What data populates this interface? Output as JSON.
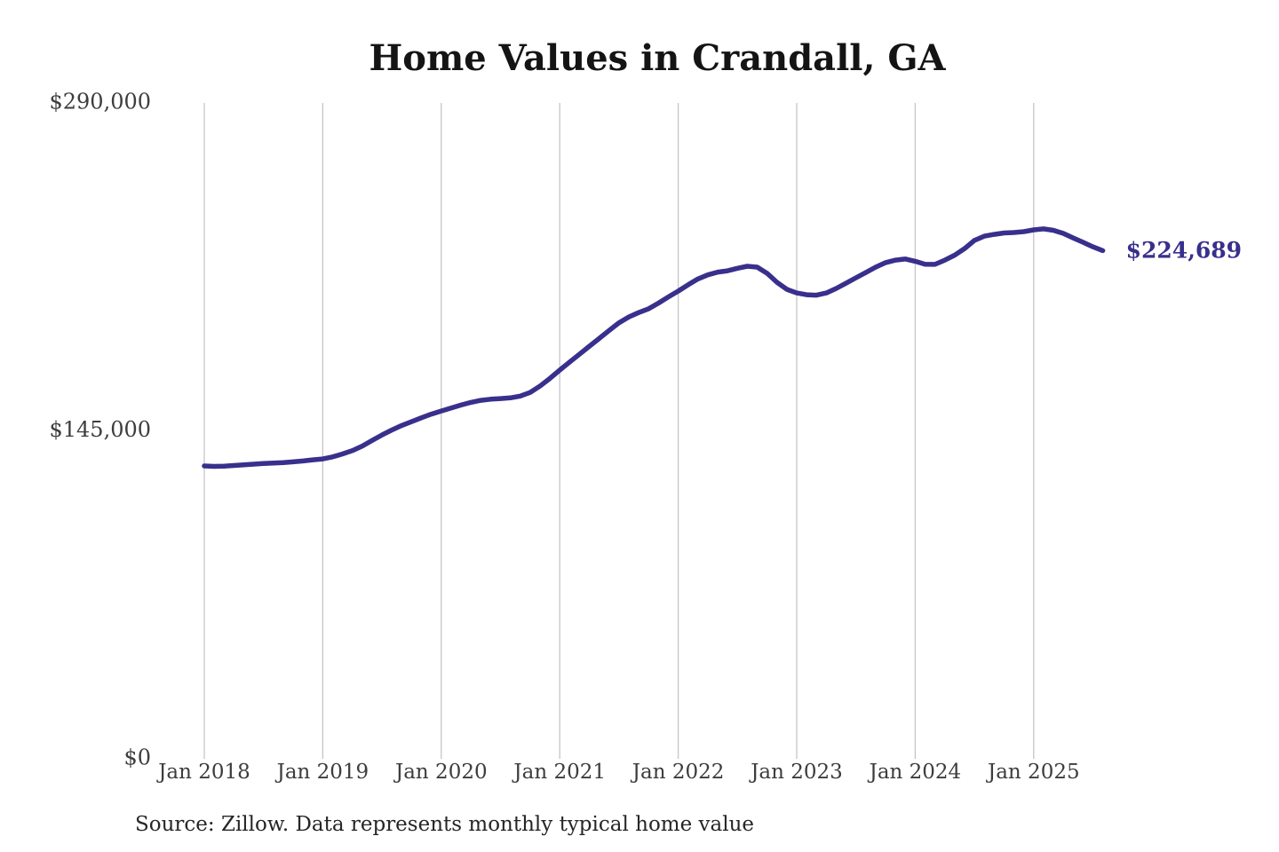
{
  "title": "Home Values in Crandall, GA",
  "end_label": "$224,689",
  "source_note": "Source: Zillow. Data represents monthly typical home value",
  "colors": {
    "background": "#FFFFFF",
    "line": "#38308C",
    "gridline": "#C6C6C6",
    "tick_label": "#3D3D3D",
    "title": "#141414",
    "end_label": "#38308C",
    "source_note": "#262626"
  },
  "chart_data": {
    "type": "line",
    "title": "Home Values in Crandall, GA",
    "xlabel": "",
    "ylabel": "",
    "unit": "USD",
    "ylim": [
      0,
      290000
    ],
    "y_ticks": [
      0,
      145000,
      290000
    ],
    "y_tick_labels": [
      "$0",
      "$145,000",
      "$290,000"
    ],
    "x_tick_labels": [
      "Jan 2018",
      "Jan 2019",
      "Jan 2020",
      "Jan 2021",
      "Jan 2022",
      "Jan 2023",
      "Jan 2024",
      "Jan 2025"
    ],
    "x_start": "2018-01",
    "x_frequency": "monthly",
    "grid": "vertical-only",
    "legend": "none",
    "end_label": "$224,689",
    "final_value": 224689,
    "series": [
      {
        "name": "Monthly typical home value",
        "values": [
          129500,
          129300,
          129400,
          129700,
          130000,
          130300,
          130600,
          130800,
          131000,
          131300,
          131700,
          132200,
          132600,
          133500,
          134800,
          136300,
          138300,
          140800,
          143200,
          145400,
          147400,
          149100,
          150800,
          152400,
          153800,
          155100,
          156400,
          157600,
          158500,
          159000,
          159300,
          159600,
          160400,
          162000,
          164800,
          168200,
          171900,
          175400,
          178900,
          182400,
          185900,
          189400,
          192800,
          195400,
          197300,
          199000,
          201500,
          204200,
          206800,
          209600,
          212200,
          214000,
          215200,
          215800,
          216900,
          217800,
          217400,
          214700,
          210700,
          207600,
          206000,
          205200,
          205000,
          206000,
          208000,
          210300,
          212700,
          215000,
          217400,
          219400,
          220500,
          221000,
          220000,
          218700,
          218600,
          220500,
          222700,
          225600,
          229200,
          231100,
          231900,
          232500,
          232700,
          233100,
          233900,
          234300,
          233700,
          232300,
          230300,
          228400,
          226400,
          224689
        ]
      }
    ]
  }
}
